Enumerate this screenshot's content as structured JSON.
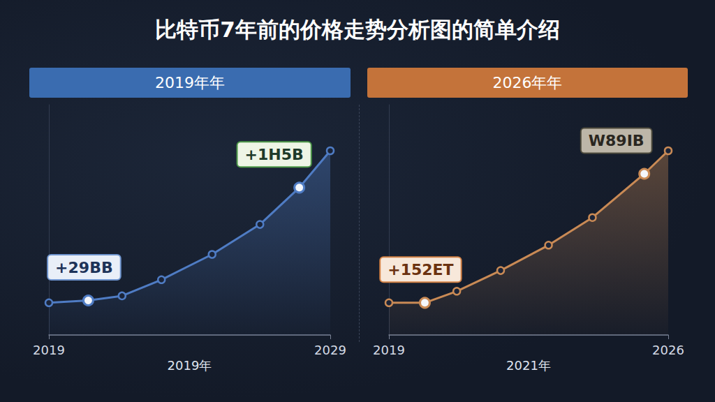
{
  "title": "比特币7年前的价格走势分析图的简单介绍",
  "chart_data": [
    {
      "type": "line",
      "title": "2019年年",
      "x_label": "2019年",
      "x": [
        2019,
        2020.4,
        2021.6,
        2023,
        2024.8,
        2026.5,
        2027.9,
        2029
      ],
      "values": [
        14,
        15,
        17,
        24,
        35,
        48,
        64,
        80
      ],
      "color": "#4f7cc4",
      "xlim": [
        2019,
        2029
      ],
      "xticks": [
        2019,
        2029
      ],
      "ylim": [
        0,
        100
      ],
      "tick_labels": "x",
      "grid": false,
      "marker": "circle",
      "line_style": "solid",
      "annotations": [
        {
          "x": 2020.4,
          "text": "+29BB"
        },
        {
          "x": 2027.9,
          "text": "+1H5B"
        }
      ]
    },
    {
      "type": "line",
      "title": "2026年年",
      "x_label": "2021年",
      "x": [
        2019,
        2019.9,
        2020.7,
        2021.8,
        2023,
        2024.1,
        2025.4,
        2026
      ],
      "values": [
        14,
        14,
        19,
        28,
        39,
        51,
        70,
        80
      ],
      "color": "#c98a55",
      "xlim": [
        2019,
        2026
      ],
      "xticks": [
        2019,
        2026
      ],
      "ylim": [
        0,
        100
      ],
      "tick_labels": "x",
      "grid": false,
      "marker": "circle",
      "line_style": "solid",
      "annotations": [
        {
          "x": 2019.9,
          "text": "+152ET"
        },
        {
          "x": 2025.4,
          "text": "W89IB"
        }
      ]
    }
  ]
}
